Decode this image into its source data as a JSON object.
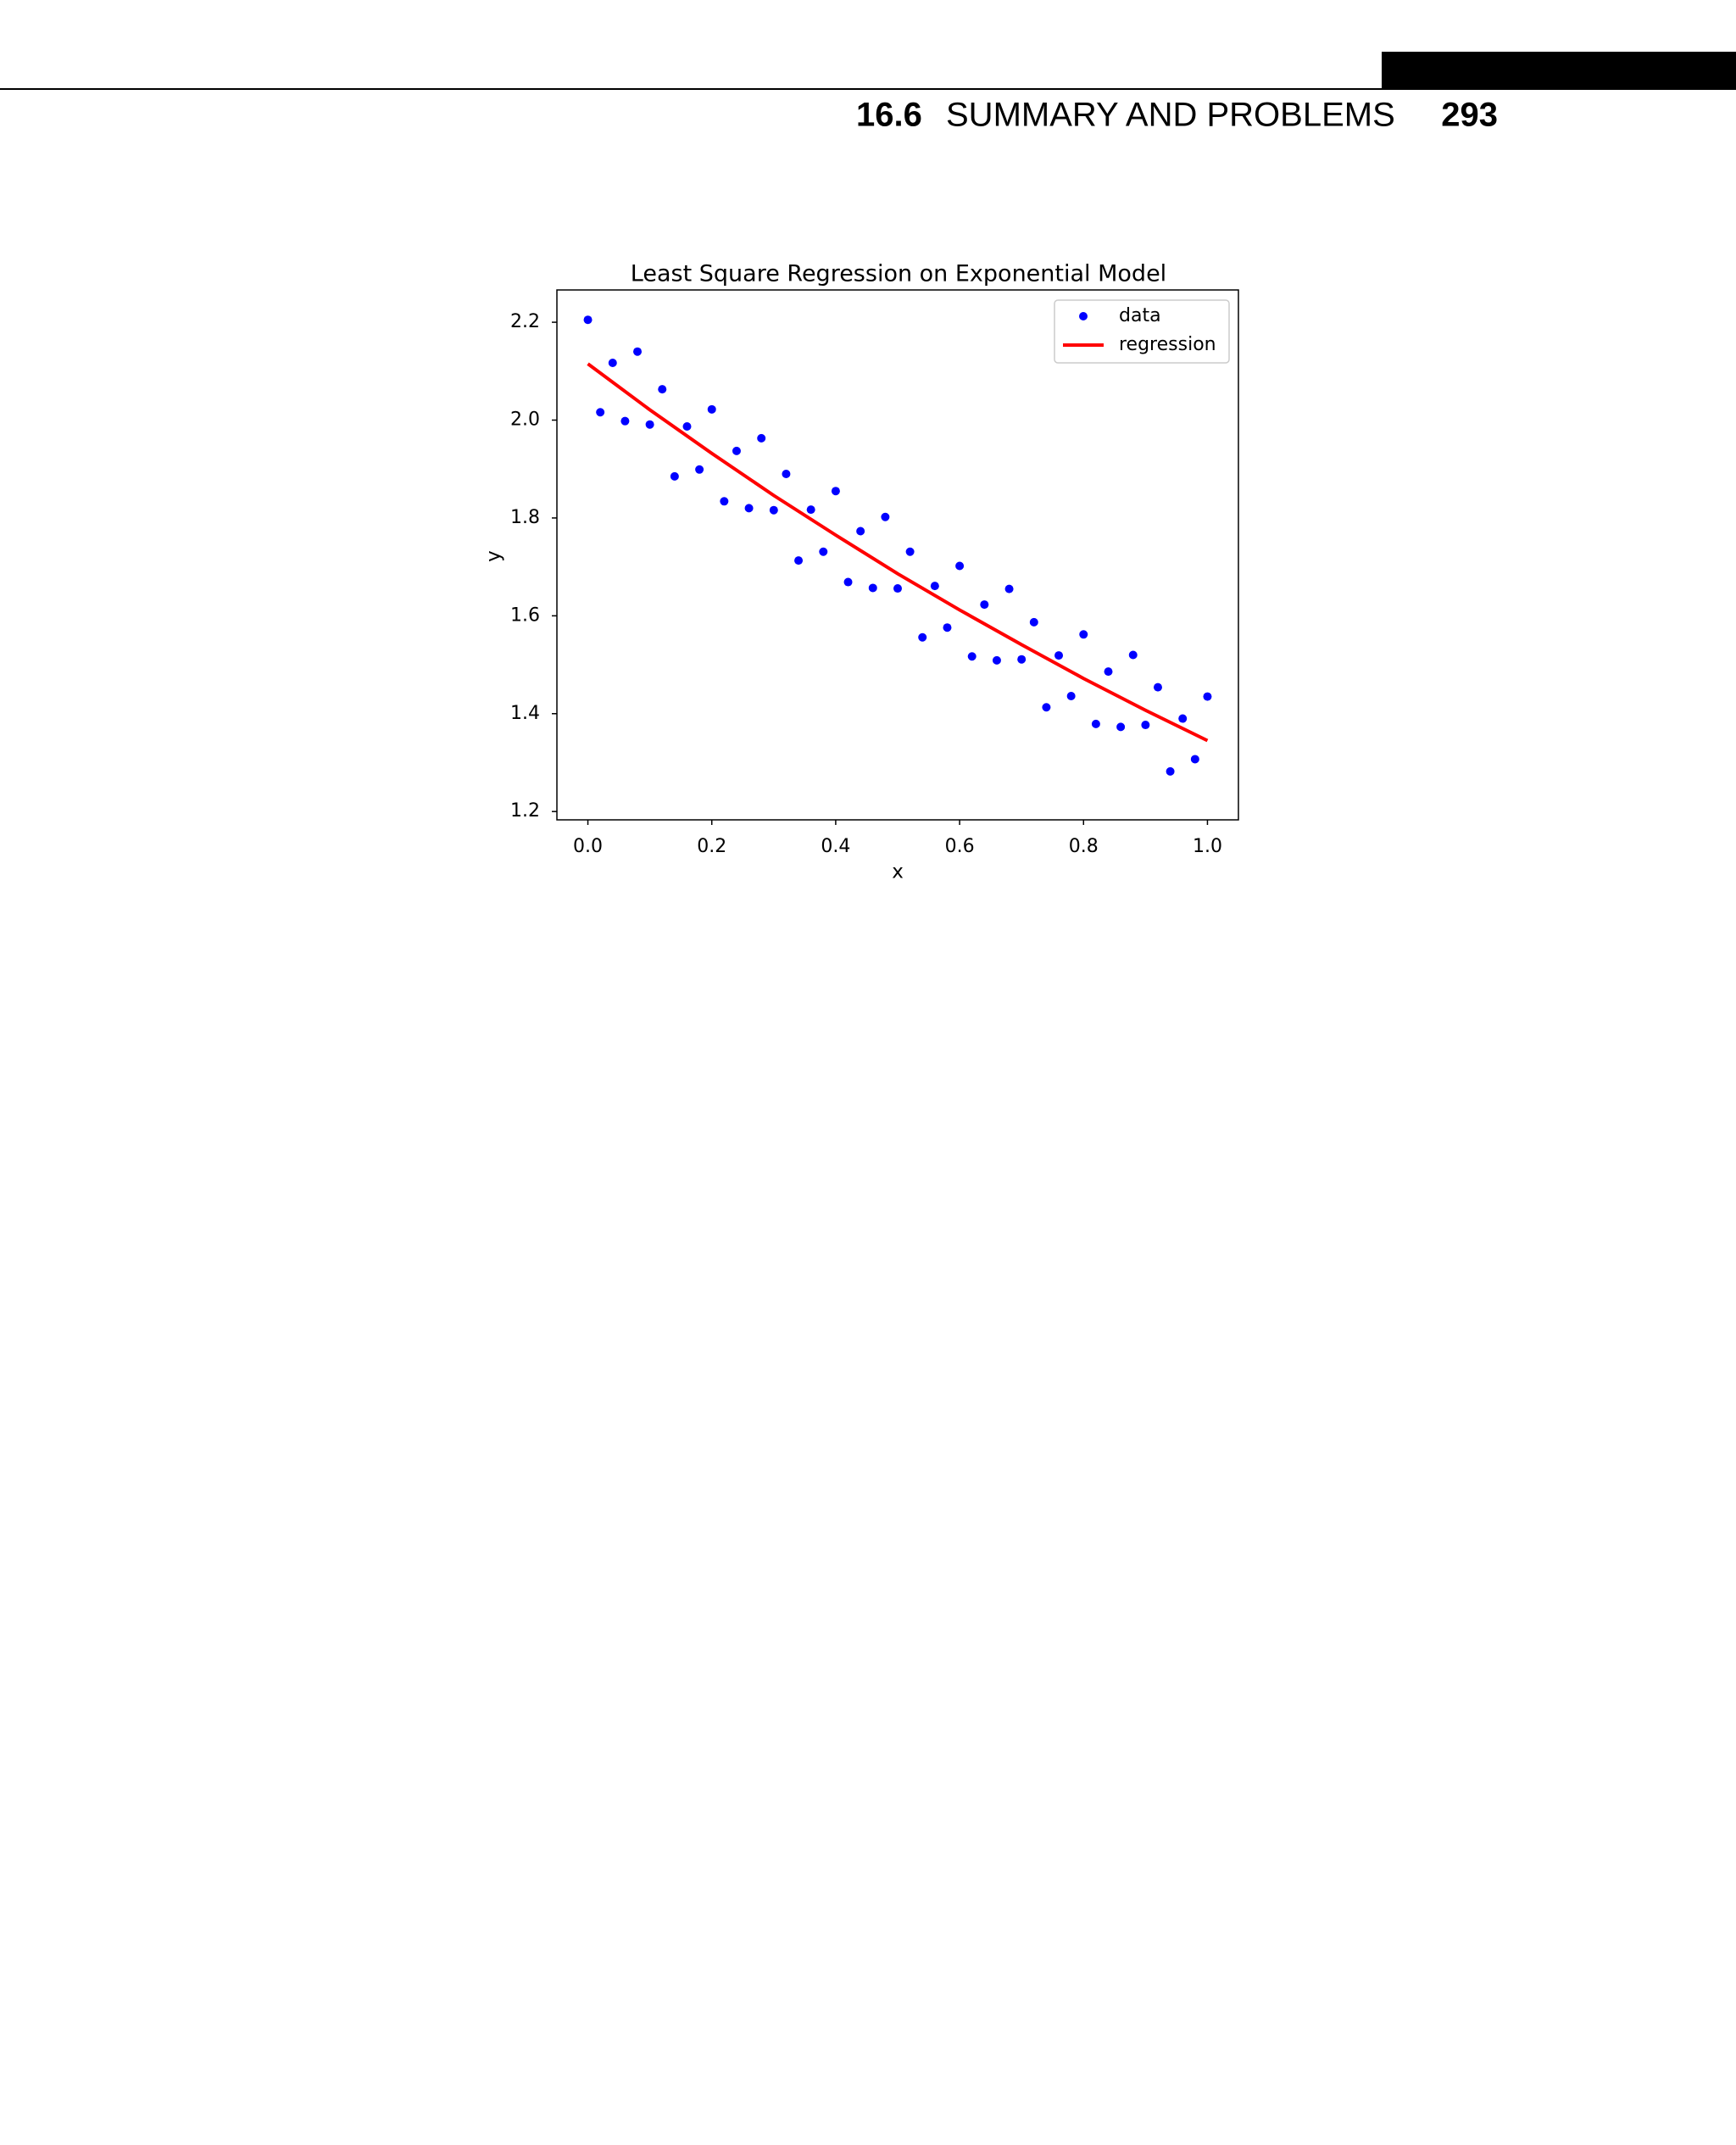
{
  "header": {
    "section_number": "16.6",
    "section_title": "SUMMARY AND PROBLEMS",
    "page_number": "293"
  },
  "chart_data": {
    "type": "scatter",
    "title": "Least Square Regression on Exponential Model",
    "x_label": "x",
    "y_label": "y",
    "xlim": [
      -0.05,
      1.05
    ],
    "ylim": [
      1.183,
      2.266
    ],
    "xticks": [
      {
        "value": 0,
        "label": "0.0"
      },
      0.2,
      0.4,
      0.6,
      0.8,
      {
        "value": 1,
        "label": "1.0"
      }
    ],
    "yticks": [
      1.2,
      1.4,
      1.6,
      1.8,
      {
        "value": 2,
        "label": "2.0"
      },
      2.2
    ],
    "legend": "upper right",
    "series": [
      {
        "name": "data",
        "kind": "points",
        "color": "#0000ff",
        "x": [
          0,
          0.02,
          0.04,
          0.06,
          0.08,
          0.1,
          0.12,
          0.14,
          0.16,
          0.18,
          0.2,
          0.22,
          0.24,
          0.26,
          0.28,
          0.3,
          0.32,
          0.34,
          0.36,
          0.38,
          0.4,
          0.42,
          0.44,
          0.46,
          0.48,
          0.5,
          0.52,
          0.54,
          0.56,
          0.58,
          0.6,
          0.62,
          0.64,
          0.66,
          0.68,
          0.7,
          0.72,
          0.74,
          0.76,
          0.78,
          0.8,
          0.82,
          0.84,
          0.86,
          0.88,
          0.9,
          0.92,
          0.94,
          0.96,
          0.98,
          1
        ],
        "values": [
          2.205,
          2.016,
          2.117,
          1.998,
          2.14,
          1.991,
          2.063,
          1.885,
          1.987,
          1.899,
          2.022,
          1.834,
          1.937,
          1.82,
          1.963,
          1.816,
          1.89,
          1.713,
          1.817,
          1.731,
          1.855,
          1.669,
          1.773,
          1.657,
          1.802,
          1.656,
          1.731,
          1.556,
          1.661,
          1.576,
          1.702,
          1.517,
          1.623,
          1.509,
          1.655,
          1.511,
          1.587,
          1.413,
          1.519,
          1.436,
          1.562,
          1.379,
          1.486,
          1.373,
          1.52,
          1.377,
          1.454,
          1.282,
          1.39,
          1.307,
          1.435
        ]
      },
      {
        "name": "regression",
        "kind": "line",
        "color": "#ff0000",
        "x": [
          0,
          0.1,
          0.2,
          0.3,
          0.4,
          0.5,
          0.6,
          0.7,
          0.8,
          0.9,
          1
        ],
        "values": [
          2.115,
          2.021,
          1.932,
          1.846,
          1.765,
          1.686,
          1.612,
          1.541,
          1.472,
          1.407,
          1.345
        ]
      }
    ]
  }
}
